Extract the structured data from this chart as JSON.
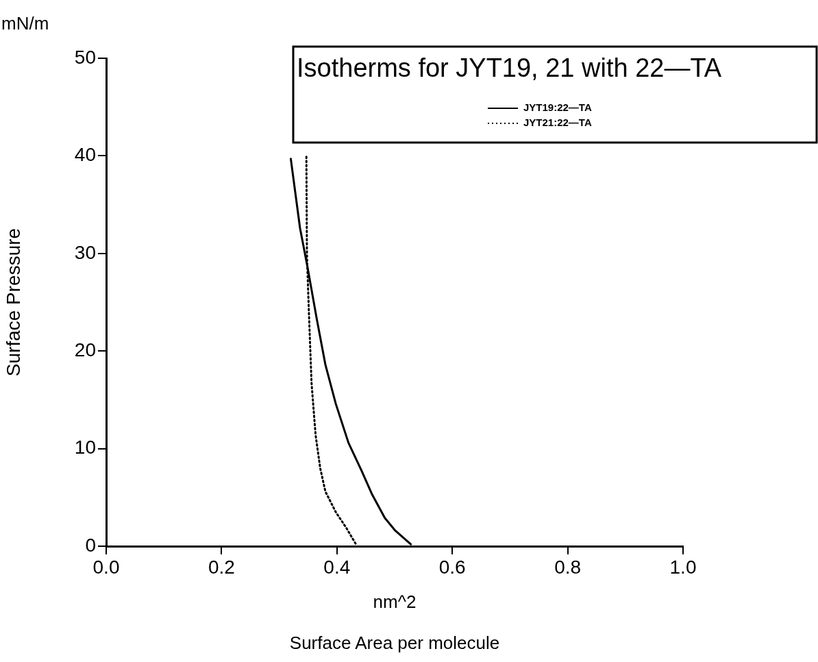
{
  "chart_data": {
    "type": "line",
    "title": "Isotherms for JYT19, 21 with 22—TA",
    "xlabel": "Surface Area per molecule",
    "ylabel": "Surface Pressure",
    "annotations": [
      "mN/m",
      "nm^2"
    ],
    "xlim": [
      0,
      1
    ],
    "xticks": [
      {
        "value": 0,
        "label": "0.0"
      },
      {
        "value": 0.2,
        "label": "0.2"
      },
      {
        "value": 0.4,
        "label": "0.4"
      },
      {
        "value": 0.6,
        "label": "0.6"
      },
      {
        "value": 0.8,
        "label": "0.8"
      },
      {
        "value": 1,
        "label": "1.0"
      }
    ],
    "ylim": [
      0,
      50
    ],
    "yticks": [
      0,
      10,
      20,
      30,
      40,
      50
    ],
    "grid": false,
    "legend": "top right",
    "marker": "none",
    "series": [
      {
        "name": "JYT19:22—TA",
        "color": "#000000",
        "line_style": "solid",
        "x": [
          0.32,
          0.336,
          0.349,
          0.365,
          0.38,
          0.398,
          0.42,
          0.443,
          0.461,
          0.483,
          0.501,
          0.528
        ],
        "values": [
          39.7,
          32.6,
          28.6,
          23.3,
          18.6,
          14.6,
          10.6,
          7.7,
          5.3,
          2.9,
          1.6,
          0.2
        ]
      },
      {
        "name": "JYT21:22—TA",
        "color": "#000000",
        "line_style": "dotted",
        "x": [
          0.347,
          0.348,
          0.351,
          0.356,
          0.363,
          0.371,
          0.38,
          0.398,
          0.416,
          0.433
        ],
        "values": [
          39.9,
          29.9,
          24.6,
          16.7,
          11.4,
          8.0,
          5.6,
          3.5,
          1.9,
          0.2
        ]
      }
    ]
  }
}
